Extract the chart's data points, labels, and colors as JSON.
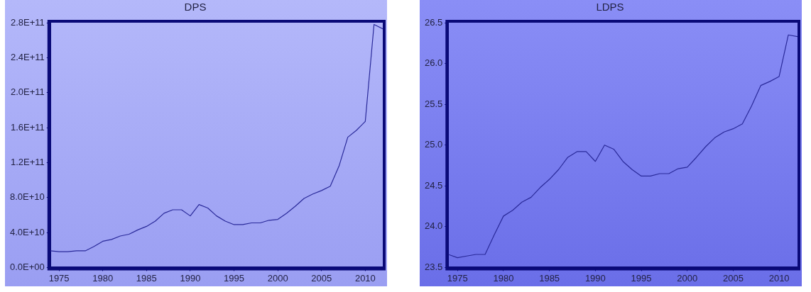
{
  "chart_data": [
    {
      "type": "line",
      "title": "DPS",
      "color": "#2a2a9a",
      "grid": false,
      "x": [
        1974,
        1975,
        1976,
        1977,
        1978,
        1979,
        1980,
        1981,
        1982,
        1983,
        1984,
        1985,
        1986,
        1987,
        1988,
        1989,
        1990,
        1991,
        1992,
        1993,
        1994,
        1995,
        1996,
        1997,
        1998,
        1999,
        2000,
        2001,
        2002,
        2003,
        2004,
        2005,
        2006,
        2007,
        2008,
        2009,
        2010,
        2011,
        2012
      ],
      "values": [
        19000000000.0,
        18000000000.0,
        18000000000.0,
        19000000000.0,
        19000000000.0,
        24000000000.0,
        30000000000.0,
        32000000000.0,
        36000000000.0,
        38000000000.0,
        43000000000.0,
        47000000000.0,
        53000000000.0,
        62000000000.0,
        66000000000.0,
        66000000000.0,
        59000000000.0,
        72000000000.0,
        68000000000.0,
        59000000000.0,
        53000000000.0,
        49000000000.0,
        49000000000.0,
        51000000000.0,
        51000000000.0,
        54000000000.0,
        55000000000.0,
        62000000000.0,
        70000000000.0,
        79000000000.0,
        84000000000.0,
        88000000000.0,
        93000000000.0,
        116000000000.0,
        149000000000.0,
        157000000000.0,
        167000000000.0,
        278000000000.0,
        273000000000.0
      ],
      "xlim": [
        1974,
        2012
      ],
      "xticks": [
        1975,
        1980,
        1985,
        1990,
        1995,
        2000,
        2005,
        2010
      ],
      "ylim": [
        0,
        280000000000.0
      ],
      "yticks": [
        {
          "value": 0,
          "label": "0.0E+00"
        },
        {
          "value": 40000000000.0,
          "label": "4.0E+10"
        },
        {
          "value": 80000000000.0,
          "label": "8.0E+10"
        },
        {
          "value": 120000000000.0,
          "label": "1.2E+11"
        },
        {
          "value": 160000000000.0,
          "label": "1.6E+11"
        },
        {
          "value": 200000000000.0,
          "label": "2.0E+11"
        },
        {
          "value": 240000000000.0,
          "label": "2.4E+11"
        },
        {
          "value": 280000000000.0,
          "label": "2.8E+11"
        }
      ]
    },
    {
      "type": "line",
      "title": "LDPS",
      "color": "#2a2a9a",
      "grid": false,
      "x": [
        1974,
        1975,
        1976,
        1977,
        1978,
        1979,
        1980,
        1981,
        1982,
        1983,
        1984,
        1985,
        1986,
        1987,
        1988,
        1989,
        1990,
        1991,
        1992,
        1993,
        1994,
        1995,
        1996,
        1997,
        1998,
        1999,
        2000,
        2001,
        2002,
        2003,
        2004,
        2005,
        2006,
        2007,
        2008,
        2009,
        2010,
        2011,
        2012
      ],
      "values": [
        23.66,
        23.62,
        23.64,
        23.66,
        23.66,
        23.9,
        24.13,
        24.2,
        24.3,
        24.36,
        24.48,
        24.58,
        24.7,
        24.85,
        24.92,
        24.92,
        24.8,
        25.0,
        24.95,
        24.8,
        24.7,
        24.62,
        24.62,
        24.65,
        24.65,
        24.71,
        24.73,
        24.85,
        24.98,
        25.09,
        25.16,
        25.2,
        25.26,
        25.48,
        25.73,
        25.78,
        25.84,
        26.35,
        26.33
      ],
      "xlim": [
        1974,
        2012
      ],
      "xticks": [
        1975,
        1980,
        1985,
        1990,
        1995,
        2000,
        2005,
        2010
      ],
      "ylim": [
        23.5,
        26.5
      ],
      "yticks": [
        {
          "value": 23.5,
          "label": "23.5"
        },
        {
          "value": 24,
          "label": "24.0"
        },
        {
          "value": 24.5,
          "label": "24.5"
        },
        {
          "value": 25,
          "label": "25.0"
        },
        {
          "value": 25.5,
          "label": "25.5"
        },
        {
          "value": 26,
          "label": "26.0"
        },
        26.5
      ]
    }
  ]
}
